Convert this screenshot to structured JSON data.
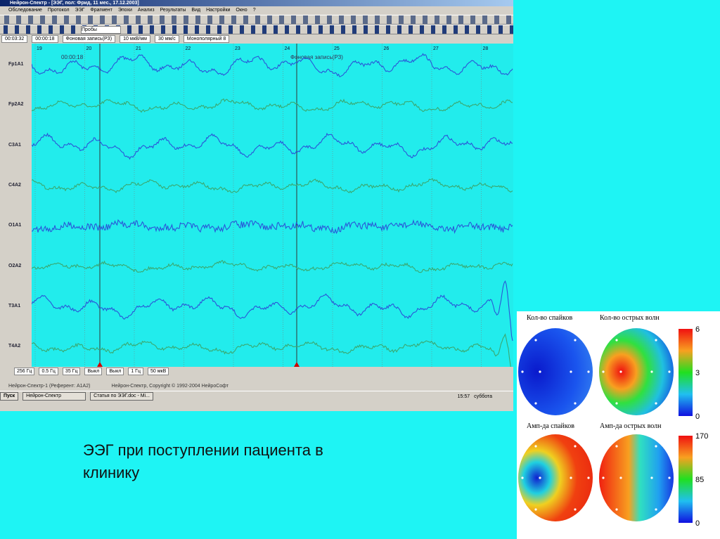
{
  "window": {
    "title": "Нейрон-Спектр - [ЭЭГ, пол: Фрид, 11 мес., 17.12.2003]",
    "menu": [
      "Обследование",
      "Протокол",
      "ЭЭГ",
      "Фрагмент",
      "Эпохи",
      "Анализ",
      "Результаты",
      "Вид",
      "Настройки",
      "Окно",
      "?"
    ],
    "probe_select": "Пробы"
  },
  "info_bar": [
    "00:03:32",
    "00:00:18",
    "Фоновая запись(РЗ)",
    "10 мкВ/мм",
    "30 мм/с",
    "Монополярный 8"
  ],
  "eeg": {
    "channels": [
      "Fp1A1",
      "Fp2A2",
      "C3A1",
      "C4A2",
      "O1A1",
      "O2A2",
      "T3A1",
      "T4A2"
    ],
    "time_marks": [
      19,
      20,
      21,
      22,
      23,
      24,
      25,
      26,
      27,
      28
    ],
    "annotation": "Фоновая запись(РЗ)",
    "cursor_time": "00:00:18"
  },
  "filter_bar": [
    "256 Гц",
    "0.5 Гц",
    "35 Гц",
    "Выкл",
    "Выкл",
    "1 Гц",
    "50 мкВ"
  ],
  "status_bar": [
    "Нейрон-Спектр-1 (Референт: А1А2)",
    "Нейрон-Спектр, Copyright © 1992-2004 НейроСофт"
  ],
  "taskbar": {
    "start": "Пуск",
    "tasks": [
      "Нейрон-Спектр",
      "Статья по ЭЭГ.doc - Mi..."
    ],
    "clock": "15:57",
    "day": "суббота"
  },
  "caption": "ЭЭГ при поступлении пациента в клинику",
  "maps": {
    "panels": [
      {
        "title": "Кол-во спайков"
      },
      {
        "title": "Кол-во острых волн"
      },
      {
        "title": "Амп-да спайков"
      },
      {
        "title": "Амп-да острых волн"
      }
    ],
    "scales": [
      {
        "ticks": [
          6,
          3,
          0
        ]
      },
      {
        "ticks": [
          170,
          85,
          0
        ]
      }
    ]
  }
}
